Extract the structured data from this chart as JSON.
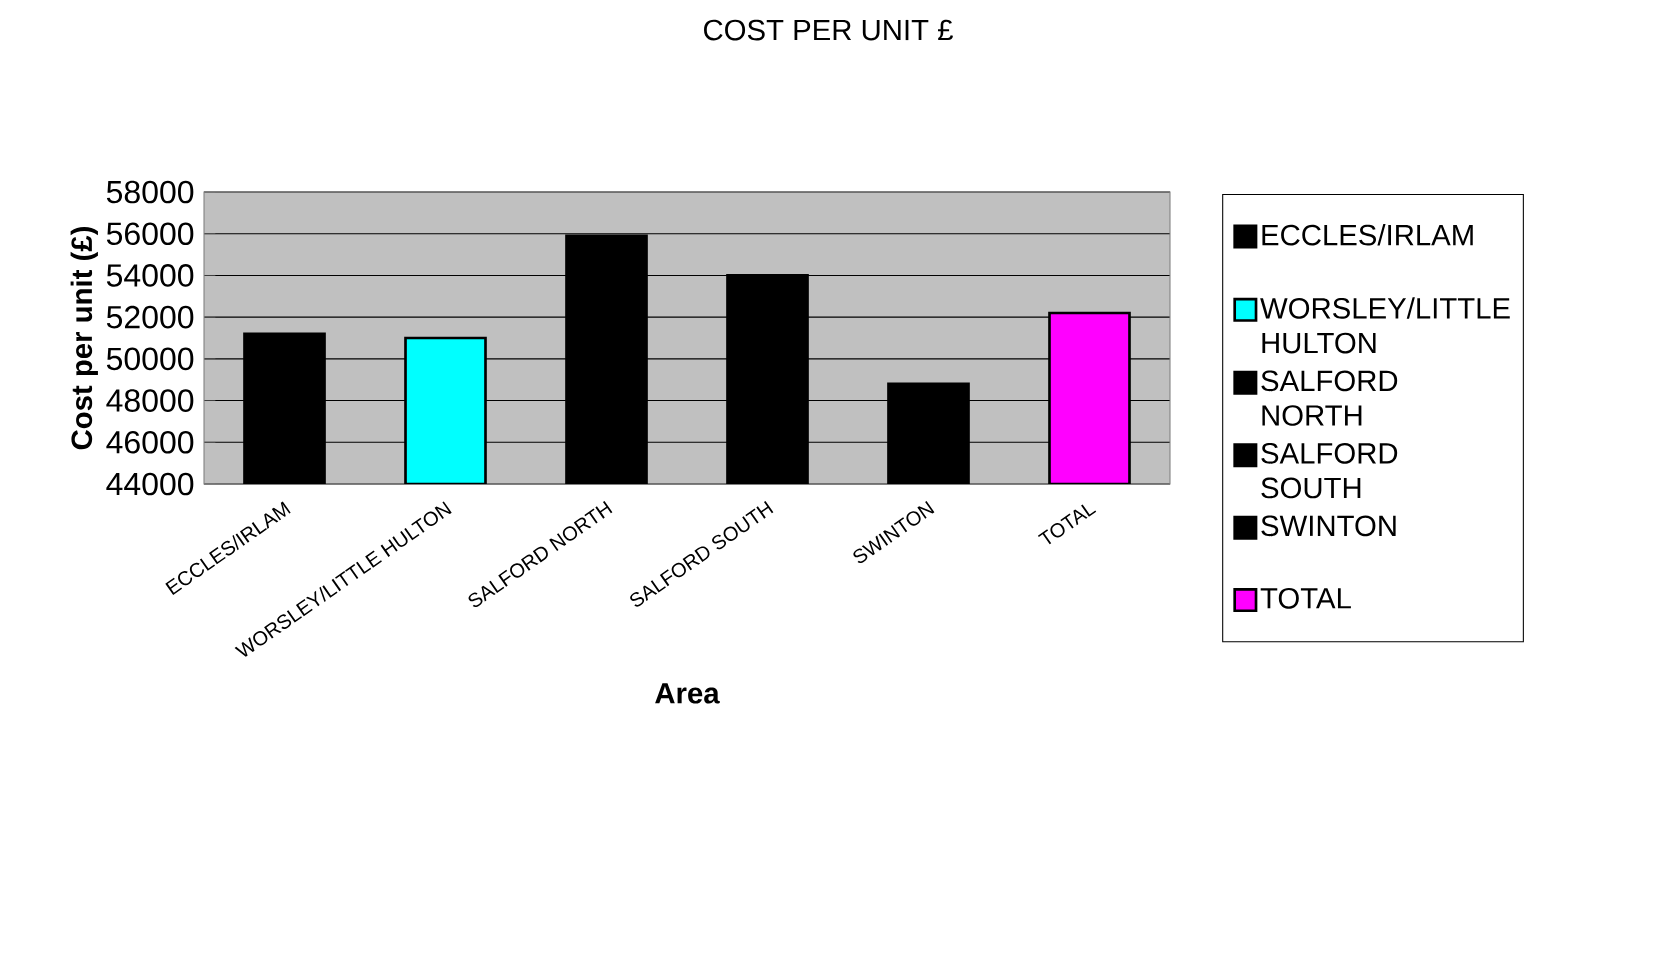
{
  "chart_data": {
    "type": "bar",
    "title": "COST PER UNIT £",
    "xlabel": "Area",
    "ylabel": "Cost per unit (£)",
    "categories": [
      "ECCLES/IRLAM",
      "WORSLEY/LITTLE HULTON",
      "SALFORD NORTH",
      "SALFORD SOUTH",
      "SWINTON",
      "TOTAL"
    ],
    "series": [
      {
        "name": "ECCLES/IRLAM",
        "color": "#000000",
        "values": [
          51200,
          null,
          null,
          null,
          null,
          null
        ]
      },
      {
        "name": "WORSLEY/LITTLE HULTON",
        "color": "#00ffff",
        "values": [
          null,
          51000,
          null,
          null,
          null,
          null
        ]
      },
      {
        "name": "SALFORD NORTH",
        "color": "#000000",
        "values": [
          null,
          null,
          55900,
          null,
          null,
          null
        ]
      },
      {
        "name": "SALFORD SOUTH",
        "color": "#000000",
        "values": [
          null,
          null,
          null,
          54000,
          null,
          null
        ]
      },
      {
        "name": "SWINTON",
        "color": "#000000",
        "values": [
          null,
          null,
          null,
          null,
          48800,
          null
        ]
      },
      {
        "name": "TOTAL",
        "color": "#ff00ff",
        "values": [
          null,
          null,
          null,
          null,
          null,
          52200
        ]
      }
    ],
    "ylim": [
      44000,
      58000
    ],
    "yticks": [
      44000,
      46000,
      48000,
      50000,
      52000,
      54000,
      56000,
      58000
    ],
    "grid": "y",
    "legend": "right"
  }
}
